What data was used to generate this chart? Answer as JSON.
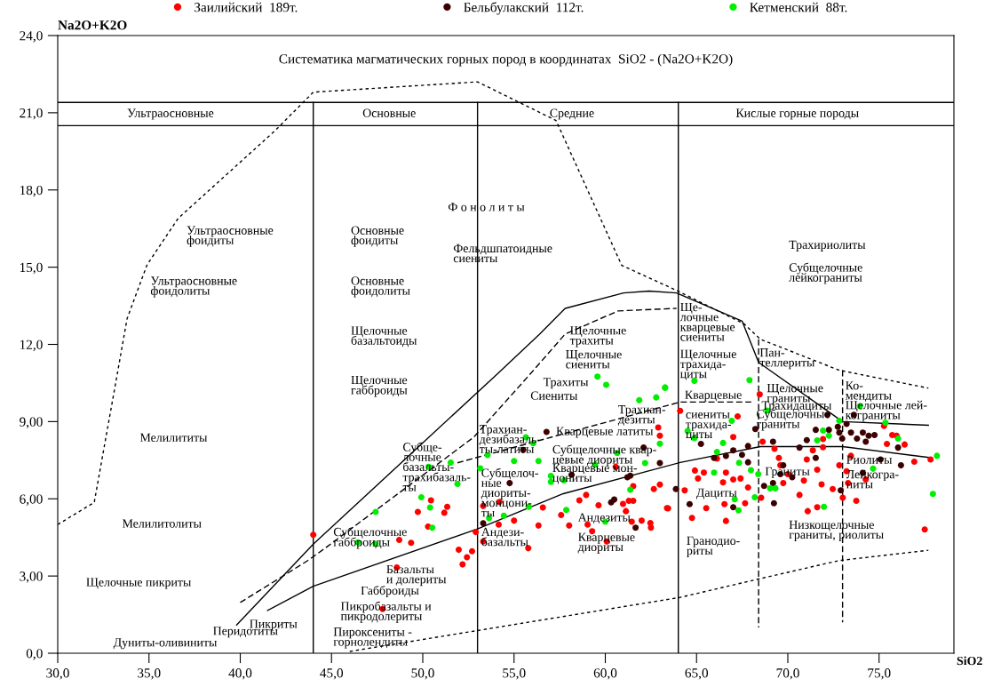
{
  "chart_data": {
    "type": "scatter",
    "title": "Систематика магматических горных пород в координатах  SiO2 - (Na2O+K2O)",
    "xlabel": "SiO2",
    "ylabel": "Na2O+K2O",
    "xlim": [
      30,
      79.1
    ],
    "ylim": [
      0,
      24
    ],
    "xticks": [
      {
        "value": 30,
        "label": "30,0"
      },
      {
        "value": 35,
        "label": "35,0"
      },
      {
        "value": 40,
        "label": "40,0"
      },
      {
        "value": 45,
        "label": "45,0"
      },
      {
        "value": 50,
        "label": "50,0"
      },
      {
        "value": 55,
        "label": "55,0"
      },
      {
        "value": 60,
        "label": "60,0"
      },
      {
        "value": 65,
        "label": "65,0"
      },
      {
        "value": 70,
        "label": "70,0"
      },
      {
        "value": 75,
        "label": "75,0"
      }
    ],
    "yticks": [
      {
        "value": 0,
        "label": "0,0"
      },
      {
        "value": 3,
        "label": "3,00"
      },
      {
        "value": 6,
        "label": "6,00"
      },
      {
        "value": 9,
        "label": "9,00"
      },
      {
        "value": 12,
        "label": "12,0"
      },
      {
        "value": 15,
        "label": "15,0"
      },
      {
        "value": 18,
        "label": "18,0"
      },
      {
        "value": 21,
        "label": "21,0"
      },
      {
        "value": 24,
        "label": "24,0"
      }
    ],
    "grid": false,
    "legend": "top",
    "marker": "circle",
    "series": [
      {
        "type": "line",
        "marker": "none",
        "color": "#000000",
        "line_style": "dotted",
        "x": [
          30,
          32,
          33.2,
          33.8,
          34.9,
          36.6,
          41.9,
          44.0,
          53.0,
          57.3,
          60.9,
          63.9,
          67.6,
          68.5,
          72.8,
          77.7
        ],
        "values": [
          5.0,
          5.86,
          10.6,
          13.0,
          15.1,
          16.9,
          20.3,
          21.8,
          22.2,
          20.7,
          15.07,
          14.1,
          12.8,
          12.2,
          11.0,
          10.3
        ]
      },
      {
        "type": "line",
        "marker": "none",
        "color": "#000000",
        "line_style": "dotted",
        "x": [
          46.0,
          64.1,
          68.5,
          72.8,
          77.7
        ],
        "values": [
          0.07,
          2.17,
          2.9,
          3.6,
          4.0
        ]
      },
      {
        "type": "line",
        "marker": "none",
        "color": "#000000",
        "line_style": "solid",
        "x": [
          39.8,
          44.0,
          54.1,
          56.4,
          57.8,
          61.0,
          62.4,
          63.9,
          67.5,
          68.4,
          73.0,
          77.7
        ],
        "values": [
          1.1,
          4.24,
          10.86,
          12.4,
          13.4,
          14.0,
          14.07,
          14.0,
          12.9,
          11.3,
          9.0,
          8.86
        ]
      },
      {
        "type": "line",
        "marker": "none",
        "color": "#000000",
        "line_style": "solid",
        "x": [
          41.5,
          44.0,
          53.0,
          57.7,
          64.1,
          68.5,
          73.0,
          77.8
        ],
        "values": [
          1.66,
          2.6,
          4.83,
          6.2,
          7.41,
          8.03,
          8.03,
          7.6
        ]
      },
      {
        "type": "line",
        "marker": "none",
        "color": "#000000",
        "line_style": "dashed",
        "x": [
          40.0,
          43.7,
          44.76,
          52.8,
          55.9,
          57.8,
          60.7,
          63.9
        ],
        "values": [
          1.97,
          3.6,
          4.14,
          8.4,
          10.86,
          12.4,
          13.3,
          13.4
        ]
      },
      {
        "type": "line",
        "marker": "none",
        "color": "#000000",
        "line_style": "dashed",
        "x": [
          51.9,
          64.1,
          68.0
        ],
        "values": [
          7.4,
          9.76,
          9.76
        ]
      },
      {
        "type": "line",
        "marker": "none",
        "color": "#000000",
        "line_style": "dashed",
        "x": [
          68.4,
          68.4
        ],
        "values": [
          12.2,
          1.0
        ]
      },
      {
        "type": "line",
        "marker": "none",
        "color": "#000000",
        "line_style": "dashed",
        "x": [
          73.0,
          73.0
        ],
        "values": [
          11.0,
          1.2
        ]
      },
      {
        "type": "line",
        "marker": "none",
        "color": "#000000",
        "line_style": "solid",
        "x": [
          44,
          44
        ],
        "values": [
          0,
          21.4
        ]
      },
      {
        "type": "line",
        "marker": "none",
        "color": "#000000",
        "line_style": "solid",
        "x": [
          53,
          53
        ],
        "values": [
          0,
          21.4
        ]
      },
      {
        "type": "line",
        "marker": "none",
        "color": "#000000",
        "line_style": "solid",
        "x": [
          64,
          64
        ],
        "values": [
          0,
          21.4
        ]
      },
      {
        "type": "line",
        "marker": "none",
        "color": "#000000",
        "line_style": "solid",
        "x": [
          30,
          79.1
        ],
        "values": [
          21.4,
          21.4
        ]
      },
      {
        "type": "line",
        "marker": "none",
        "color": "#000000",
        "line_style": "solid",
        "x": [
          30,
          79.1
        ],
        "values": [
          20.5,
          20.5
        ]
      },
      {
        "name": "Заилийский  189т.",
        "color": "#ff0000",
        "x": [
          44.0,
          47.8,
          48.58,
          48.71,
          49.36,
          49.73,
          50.45,
          50.29,
          51.18,
          51.34,
          51.97,
          52.42,
          52.7,
          52.18,
          52.9,
          53.31,
          53.31,
          54.2,
          54.16,
          55.0,
          55.78,
          56.34,
          56.58,
          57.58,
          58.02,
          58.58,
          58.95,
          59.03,
          59.28,
          59.63,
          60.08,
          60.57,
          60.97,
          61.13,
          61.29,
          61.53,
          61.53,
          61.45,
          61.99,
          62.47,
          62.5,
          62.66,
          62.99,
          63.44,
          62.9,
          62.99,
          64.1,
          63.38,
          64.75,
          64.35,
          64.91,
          65.4,
          65.08,
          65.53,
          66.12,
          66.61,
          66.45,
          66.53,
          66.61,
          67.01,
          67.41,
          67.01,
          67.25,
          67.82,
          67.66,
          68.54,
          68.62,
          68.46,
          69.27,
          69.51,
          69.59,
          70.0,
          69.75,
          70.64,
          70.88,
          71.04,
          71.37,
          71.61,
          71.93,
          71.85,
          72.46,
          72.82,
          73.22,
          73.46,
          73.75,
          74.27,
          75.43,
          75.72,
          75.96,
          76.4,
          76.93,
          77.82,
          77.5,
          75.27,
          71.61,
          71.09,
          71.93,
          73.01,
          73.3
        ],
        "values": [
          4.6,
          1.72,
          3.33,
          4.4,
          4.29,
          5.49,
          5.94,
          4.92,
          5.46,
          5.69,
          4.02,
          3.73,
          3.96,
          3.45,
          4.71,
          4.34,
          5.72,
          5.88,
          5.0,
          5.15,
          4.08,
          4.96,
          5.66,
          5.37,
          4.96,
          5.94,
          6.15,
          5.0,
          4.74,
          5.75,
          4.34,
          7.24,
          5.8,
          5.52,
          5.92,
          5.92,
          6.49,
          5.11,
          5.15,
          5.06,
          4.88,
          6.38,
          6.55,
          5.63,
          8.77,
          8.45,
          9.42,
          5.64,
          5.26,
          6.33,
          7.1,
          7.02,
          6.79,
          5.64,
          7.56,
          7.02,
          6.64,
          5.79,
          5.14,
          6.75,
          6.79,
          8.4,
          9.2,
          6.44,
          5.83,
          6.04,
          8.22,
          10.06,
          7.94,
          7.59,
          7.3,
          6.96,
          6.61,
          6.15,
          6.71,
          7.53,
          7.88,
          7.13,
          8.0,
          6.56,
          6.38,
          7.3,
          7.07,
          7.67,
          5.92,
          6.75,
          8.13,
          8.48,
          8.45,
          8.11,
          7.44,
          7.53,
          4.81,
          8.83,
          5.67,
          5.52,
          8.32,
          6.04,
          6.61
        ]
      },
      {
        "name": "Бельбулакский  112т.",
        "color": "#3c0000",
        "x": [
          53.31,
          56.78,
          55.5,
          54.76,
          58.15,
          62.1,
          62.99,
          61.21,
          61.37,
          60.32,
          60.49,
          61.66,
          63.87,
          64.62,
          65.24,
          65.96,
          66.61,
          67.01,
          67.49,
          67.82,
          67.82,
          67.01,
          68.22,
          69.19,
          68.7,
          69.19,
          69.59,
          69.24,
          69.75,
          70.24,
          70.64,
          71.04,
          71.53,
          71.53,
          72.25,
          72.17,
          72.74,
          72.82,
          72.98,
          73.22,
          73.62,
          73.46,
          73.79,
          74.11,
          74.43,
          74.75,
          74.27,
          75.08,
          76.04,
          76.2,
          74.11,
          72.9
        ],
        "values": [
          5.05,
          8.6,
          7.9,
          6.61,
          6.93,
          7.99,
          7.39,
          6.84,
          6.9,
          5.86,
          5.97,
          4.88,
          6.38,
          5.79,
          8.13,
          7.59,
          7.67,
          7.88,
          7.71,
          8.05,
          7.42,
          5.67,
          8.71,
          8.22,
          6.5,
          6.61,
          6.96,
          5.83,
          7.3,
          6.84,
          7.99,
          8.28,
          8.68,
          7.59,
          8.68,
          9.26,
          8.8,
          8.57,
          8.34,
          8.91,
          9.26,
          8.57,
          8.34,
          8.57,
          8.45,
          8.48,
          8.22,
          7.53,
          7.99,
          7.3,
          7.01,
          6.33
        ]
      },
      {
        "name": "Кетменский  88т.",
        "color": "#00ee00",
        "x": [
          47.42,
          46.45,
          47.42,
          49.92,
          50.4,
          50.52,
          50.32,
          51.53,
          51.9,
          53.15,
          53.55,
          53.63,
          54.44,
          55.0,
          55.65,
          56.05,
          56.34,
          55.81,
          57.02,
          57.02,
          57.74,
          57.86,
          59.44,
          60.0,
          60.65,
          61.37,
          62.18,
          62.99,
          59.57,
          60.05,
          61.86,
          62.79,
          63.28,
          63.27,
          64.88,
          67.9,
          64.51,
          64.88,
          66.93,
          66.45,
          66.12,
          67.33,
          65.96,
          67.09,
          67.3,
          67.98,
          68.19,
          68.38,
          69.03,
          69.32,
          68.87,
          71.61,
          71.93,
          72.25,
          72.82,
          73.95,
          75.35,
          76.04,
          74.67,
          71.98,
          77.95,
          78.17
        ],
        "values": [
          5.49,
          4.31,
          4.25,
          6.06,
          5.66,
          4.88,
          7.24,
          7.41,
          6.58,
          7.18,
          7.7,
          5.25,
          5.34,
          7.47,
          8.39,
          8.16,
          7.47,
          5.69,
          6.89,
          6.66,
          6.72,
          5.57,
          7.32,
          5.11,
          7.78,
          6.35,
          7.39,
          8.14,
          10.75,
          10.43,
          9.83,
          9.94,
          10.32,
          10.32,
          10.58,
          10.61,
          8.63,
          8.36,
          9.03,
          8.17,
          7.82,
          7.4,
          7.02,
          5.98,
          5.55,
          7.11,
          6.06,
          6.96,
          6.41,
          6.41,
          9.43,
          8.27,
          8.65,
          8.45,
          9.03,
          9.6,
          8.95,
          8.34,
          7.17,
          5.69,
          6.19,
          7.67
        ]
      }
    ],
    "annotations": [
      "Ультраосновные",
      "Основные",
      "Средние",
      "Кислые горные породы",
      "Ультраосновные\nфоидиты",
      "Ультраосновные\nфоидолиты",
      "Мелилититы",
      "Мелилитолиты",
      "Щелочные пикриты",
      "Дуниты-оливиниты",
      "Перидотиты",
      "Пикриты",
      "Основные\nфоидиты",
      "Основные\nфоидолиты",
      "Щелочные\nбазальтоиды",
      "Щелочные\nгабброиды",
      "Ф о н о л и т ы",
      "Фельдшпатоидные\nсиениты",
      "Субще-\nлочные\nбазальты-\nтрахибазаль-\nты",
      "Субщелочные\nгабброиды",
      "Базальты\nи долериты",
      "Габброиды",
      "Пикробазальты и\nпикродолериты",
      "Пироксениты -\nгорнолендиты",
      "Андези-\nбазальты",
      "Трахиан-\nдезибазаль-\nты-латиты",
      "Субщелоч-\nные\nдиориты-\nмонцони-\nты",
      "Щелочные\nтрахиты",
      "Щелочные\nсиениты",
      "Трахиты",
      "Сиениты",
      "Трахиан-\nдезиты",
      "Кварцевые латиты",
      "Субщелочные квар-\nцевые диориты",
      "Кварцевые мон-\nцониты",
      "Андезиты",
      "Кварцевые\nдиориты",
      "Ще-\nлочные\nкварцевые\nсиениты",
      "Щелочные\nтрахида-\nциты",
      "Кварцевые",
      "сиениты\nтрахида-\nциты",
      "Дациты",
      "Гранодио-\nриты",
      "Пан-\nтеллериты",
      "Щелочные\nграниты",
      "Трахидациты",
      "Субщелочные\nграниты",
      "Граниты",
      "Ко-\nмендиты",
      "Щелочные лей-\nкограниты",
      "Риолиты",
      "Лейкогра-\nниты",
      "Низкощелочные\nграниты, риолиты",
      "Трахириолиты",
      "Субщелочные\nлейкограниты"
    ]
  }
}
